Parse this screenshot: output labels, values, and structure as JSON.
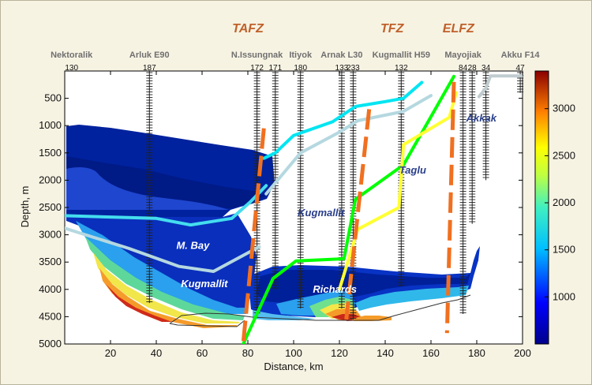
{
  "chart_data": {
    "type": "heatmap",
    "title": "",
    "xlabel": "Distance, km",
    "ylabel": "Depth, m",
    "xlim": [
      0,
      200
    ],
    "ylim": [
      5000,
      0
    ],
    "xticks": [
      20,
      40,
      60,
      80,
      100,
      120,
      140,
      160,
      180,
      200
    ],
    "yticks": [
      500,
      1000,
      1500,
      2000,
      2500,
      3000,
      3500,
      4000,
      4500,
      5000
    ],
    "colorbar": {
      "ticks": [
        1000,
        1500,
        2000,
        2500,
        3000
      ],
      "range": [
        500,
        3400
      ]
    },
    "wells": [
      {
        "name": "Nektoralik",
        "x": 3,
        "number": "130",
        "td": 0
      },
      {
        "name": "Arluk E90",
        "x": 37,
        "number": "187",
        "td": 4250
      },
      {
        "name": "N.Issungnak",
        "x": 84,
        "number": "172",
        "td": 4450
      },
      {
        "name": "",
        "x": 92,
        "number": "171",
        "td": 4000
      },
      {
        "name": "Itiyok",
        "x": 103,
        "number": "180",
        "td": 4350
      },
      {
        "name": "Arnak L30",
        "x": 121,
        "number": "133",
        "td": 4350
      },
      {
        "name": "",
        "x": 126,
        "number": "233",
        "td": 4550
      },
      {
        "name": "Kugmallit H59",
        "x": 147,
        "number": "132",
        "td": 3950
      },
      {
        "name": "Mayojiak",
        "x": 174,
        "number": "84",
        "td": 4450
      },
      {
        "name": "",
        "x": 178,
        "number": "28",
        "td": 2800
      },
      {
        "name": "",
        "x": 184,
        "number": "34",
        "td": 2000
      },
      {
        "name": "Akku F14",
        "x": 199,
        "number": "47",
        "td": 400
      }
    ],
    "faults": [
      {
        "name": "TAFZ",
        "label_x": 80,
        "top": [
          87,
          1050
        ],
        "bottom": [
          78,
          4980
        ]
      },
      {
        "name": "TFZ",
        "label_x": 143,
        "top": [
          133,
          700
        ],
        "bottom": [
          123,
          4550
        ]
      },
      {
        "name": "ELFZ",
        "label_x": 172,
        "top": [
          170,
          200
        ],
        "bottom": [
          167,
          4800
        ]
      }
    ],
    "units": [
      {
        "name": "M. Bay",
        "x": 56,
        "depth": 3200,
        "style": "white"
      },
      {
        "name": "Kugmallit",
        "x": 61,
        "depth": 3900,
        "style": "white"
      },
      {
        "name": "Kugmallit",
        "x": 112,
        "depth": 2600,
        "style": "blue"
      },
      {
        "name": "Richards",
        "x": 118,
        "depth": 4000,
        "style": "white"
      },
      {
        "name": "Taglu",
        "x": 152,
        "depth": 1820,
        "style": "blue"
      },
      {
        "name": "Akkak",
        "x": 182,
        "depth": 870,
        "style": "blue"
      }
    ],
    "series": [
      {
        "color": "#00e5f2",
        "points": [
          [
            87,
            1600
          ],
          [
            92,
            1500
          ],
          [
            100,
            1180
          ],
          [
            117,
            930
          ],
          [
            127,
            650
          ],
          [
            140,
            560
          ],
          [
            148,
            500
          ],
          [
            156,
            210
          ]
        ]
      },
      {
        "color": "#b5d8e0",
        "points": [
          [
            88,
            2250
          ],
          [
            103,
            1500
          ],
          [
            120,
            1120
          ],
          [
            128,
            910
          ],
          [
            148,
            740
          ],
          [
            160,
            450
          ]
        ]
      },
      {
        "color": "#00ff00",
        "points": [
          [
            78,
            5000
          ],
          [
            91,
            3800
          ],
          [
            101,
            3480
          ],
          [
            122,
            3440
          ],
          [
            127,
            2350
          ],
          [
            148,
            1720
          ],
          [
            170,
            100
          ]
        ]
      },
      {
        "color": "#ffff33",
        "points": [
          [
            120,
            4000
          ],
          [
            128,
            2900
          ],
          [
            146,
            2500
          ],
          [
            148,
            1350
          ],
          [
            168,
            850
          ],
          [
            171,
            400
          ]
        ]
      },
      {
        "color": "#44ddee",
        "points": [
          [
            0,
            2650
          ],
          [
            40,
            2700
          ],
          [
            55,
            2820
          ],
          [
            73,
            2700
          ],
          [
            81,
            2400
          ],
          [
            88,
            2100
          ]
        ]
      },
      {
        "color": "#b5d8e0",
        "points": [
          [
            0,
            2880
          ],
          [
            28,
            3250
          ],
          [
            50,
            3580
          ],
          [
            65,
            3670
          ],
          [
            85,
            3220
          ]
        ]
      },
      {
        "color": "#c0ccd0",
        "points": [
          [
            181,
            470
          ],
          [
            184,
            310
          ],
          [
            185,
            200
          ],
          [
            186,
            90
          ],
          [
            200,
            90
          ]
        ]
      }
    ]
  }
}
